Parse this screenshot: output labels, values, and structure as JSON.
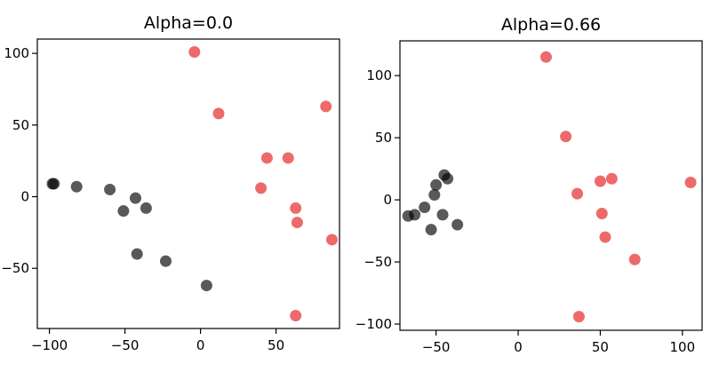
{
  "chart_data": [
    {
      "type": "scatter",
      "title": "Alpha=0.0",
      "xlim": [
        -108,
        92
      ],
      "ylim": [
        -92,
        110
      ],
      "xticks": [
        -100,
        -50,
        0,
        50
      ],
      "xtick_labels": [
        "−100",
        "−50",
        "0",
        "50"
      ],
      "yticks": [
        100,
        50,
        0,
        -50
      ],
      "ytick_labels": [
        "100",
        "50",
        "0",
        "−50"
      ],
      "grid": false,
      "series": [
        {
          "color": "#e41a1c",
          "x": [
            -4,
            12,
            83,
            44,
            58,
            40,
            63,
            64,
            87,
            63
          ],
          "y": [
            101,
            58,
            63,
            27,
            27,
            6,
            -8,
            -18,
            -30,
            -83
          ]
        },
        {
          "color": "#000000",
          "x": [
            -98,
            -97,
            -82,
            -60,
            -51,
            -43,
            -36,
            -42,
            -23,
            4
          ],
          "y": [
            9,
            9,
            7,
            5,
            -10,
            -1,
            -8,
            -40,
            -45,
            -62
          ]
        }
      ]
    },
    {
      "type": "scatter",
      "title": "Alpha=0.66",
      "xlim": [
        -72,
        112
      ],
      "ylim": [
        -105,
        128
      ],
      "xticks": [
        -50,
        0,
        50,
        100
      ],
      "xtick_labels": [
        "−50",
        "0",
        "50",
        "100"
      ],
      "yticks": [
        100,
        50,
        0,
        -50,
        -100
      ],
      "ytick_labels": [
        "100",
        "50",
        "0",
        "−50",
        "−100"
      ],
      "grid": false,
      "series": [
        {
          "color": "#e41a1c",
          "x": [
            17,
            29,
            36,
            50,
            57,
            105,
            51,
            53,
            71,
            37
          ],
          "y": [
            115,
            51,
            5,
            15,
            17,
            14,
            -11,
            -30,
            -48,
            -94
          ]
        },
        {
          "color": "#000000",
          "x": [
            -67,
            -63,
            -57,
            -51,
            -50,
            -45,
            -43,
            -46,
            -37,
            -53
          ],
          "y": [
            -13,
            -12,
            -6,
            4,
            12,
            20,
            17,
            -12,
            -20,
            -24
          ]
        }
      ]
    }
  ]
}
